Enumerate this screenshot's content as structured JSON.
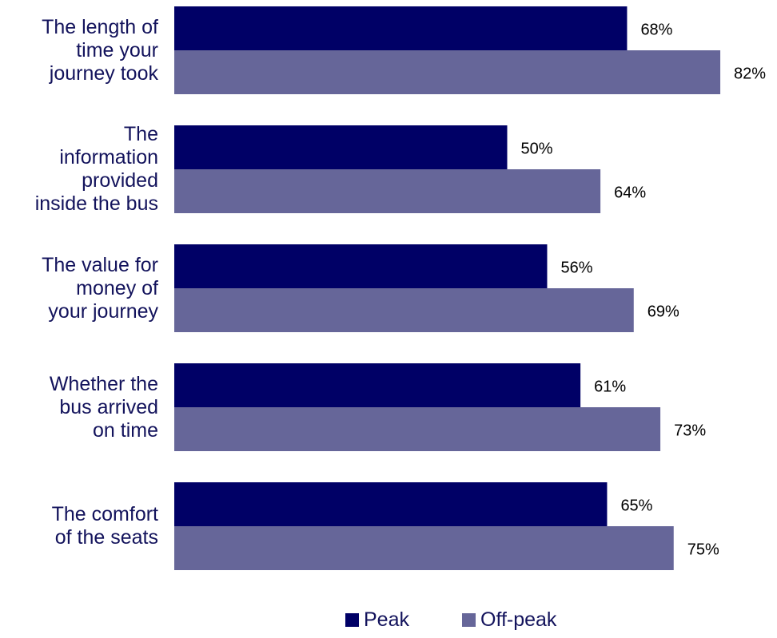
{
  "chart_data": {
    "type": "bar",
    "orientation": "horizontal",
    "categories": [
      [
        "The length of",
        "time your",
        "journey took"
      ],
      [
        "The",
        "information",
        "provided",
        "inside the bus"
      ],
      [
        "The value for",
        "money of",
        "your journey"
      ],
      [
        "Whether the",
        "bus arrived",
        "on time"
      ],
      [
        "The comfort",
        "of the seats"
      ]
    ],
    "series": [
      {
        "name": "Peak",
        "color": "#000066",
        "values": [
          68,
          50,
          56,
          61,
          65
        ],
        "labels": [
          "68%",
          "50%",
          "56%",
          "61%",
          "65%"
        ]
      },
      {
        "name": "Off-peak",
        "color": "#666699",
        "values": [
          82,
          64,
          69,
          73,
          75
        ],
        "labels": [
          "82%",
          "64%",
          "69%",
          "73%",
          "75%"
        ]
      }
    ],
    "value_format": "percent",
    "xlim": [
      0,
      100
    ],
    "grid": false,
    "legend": "bottom"
  }
}
